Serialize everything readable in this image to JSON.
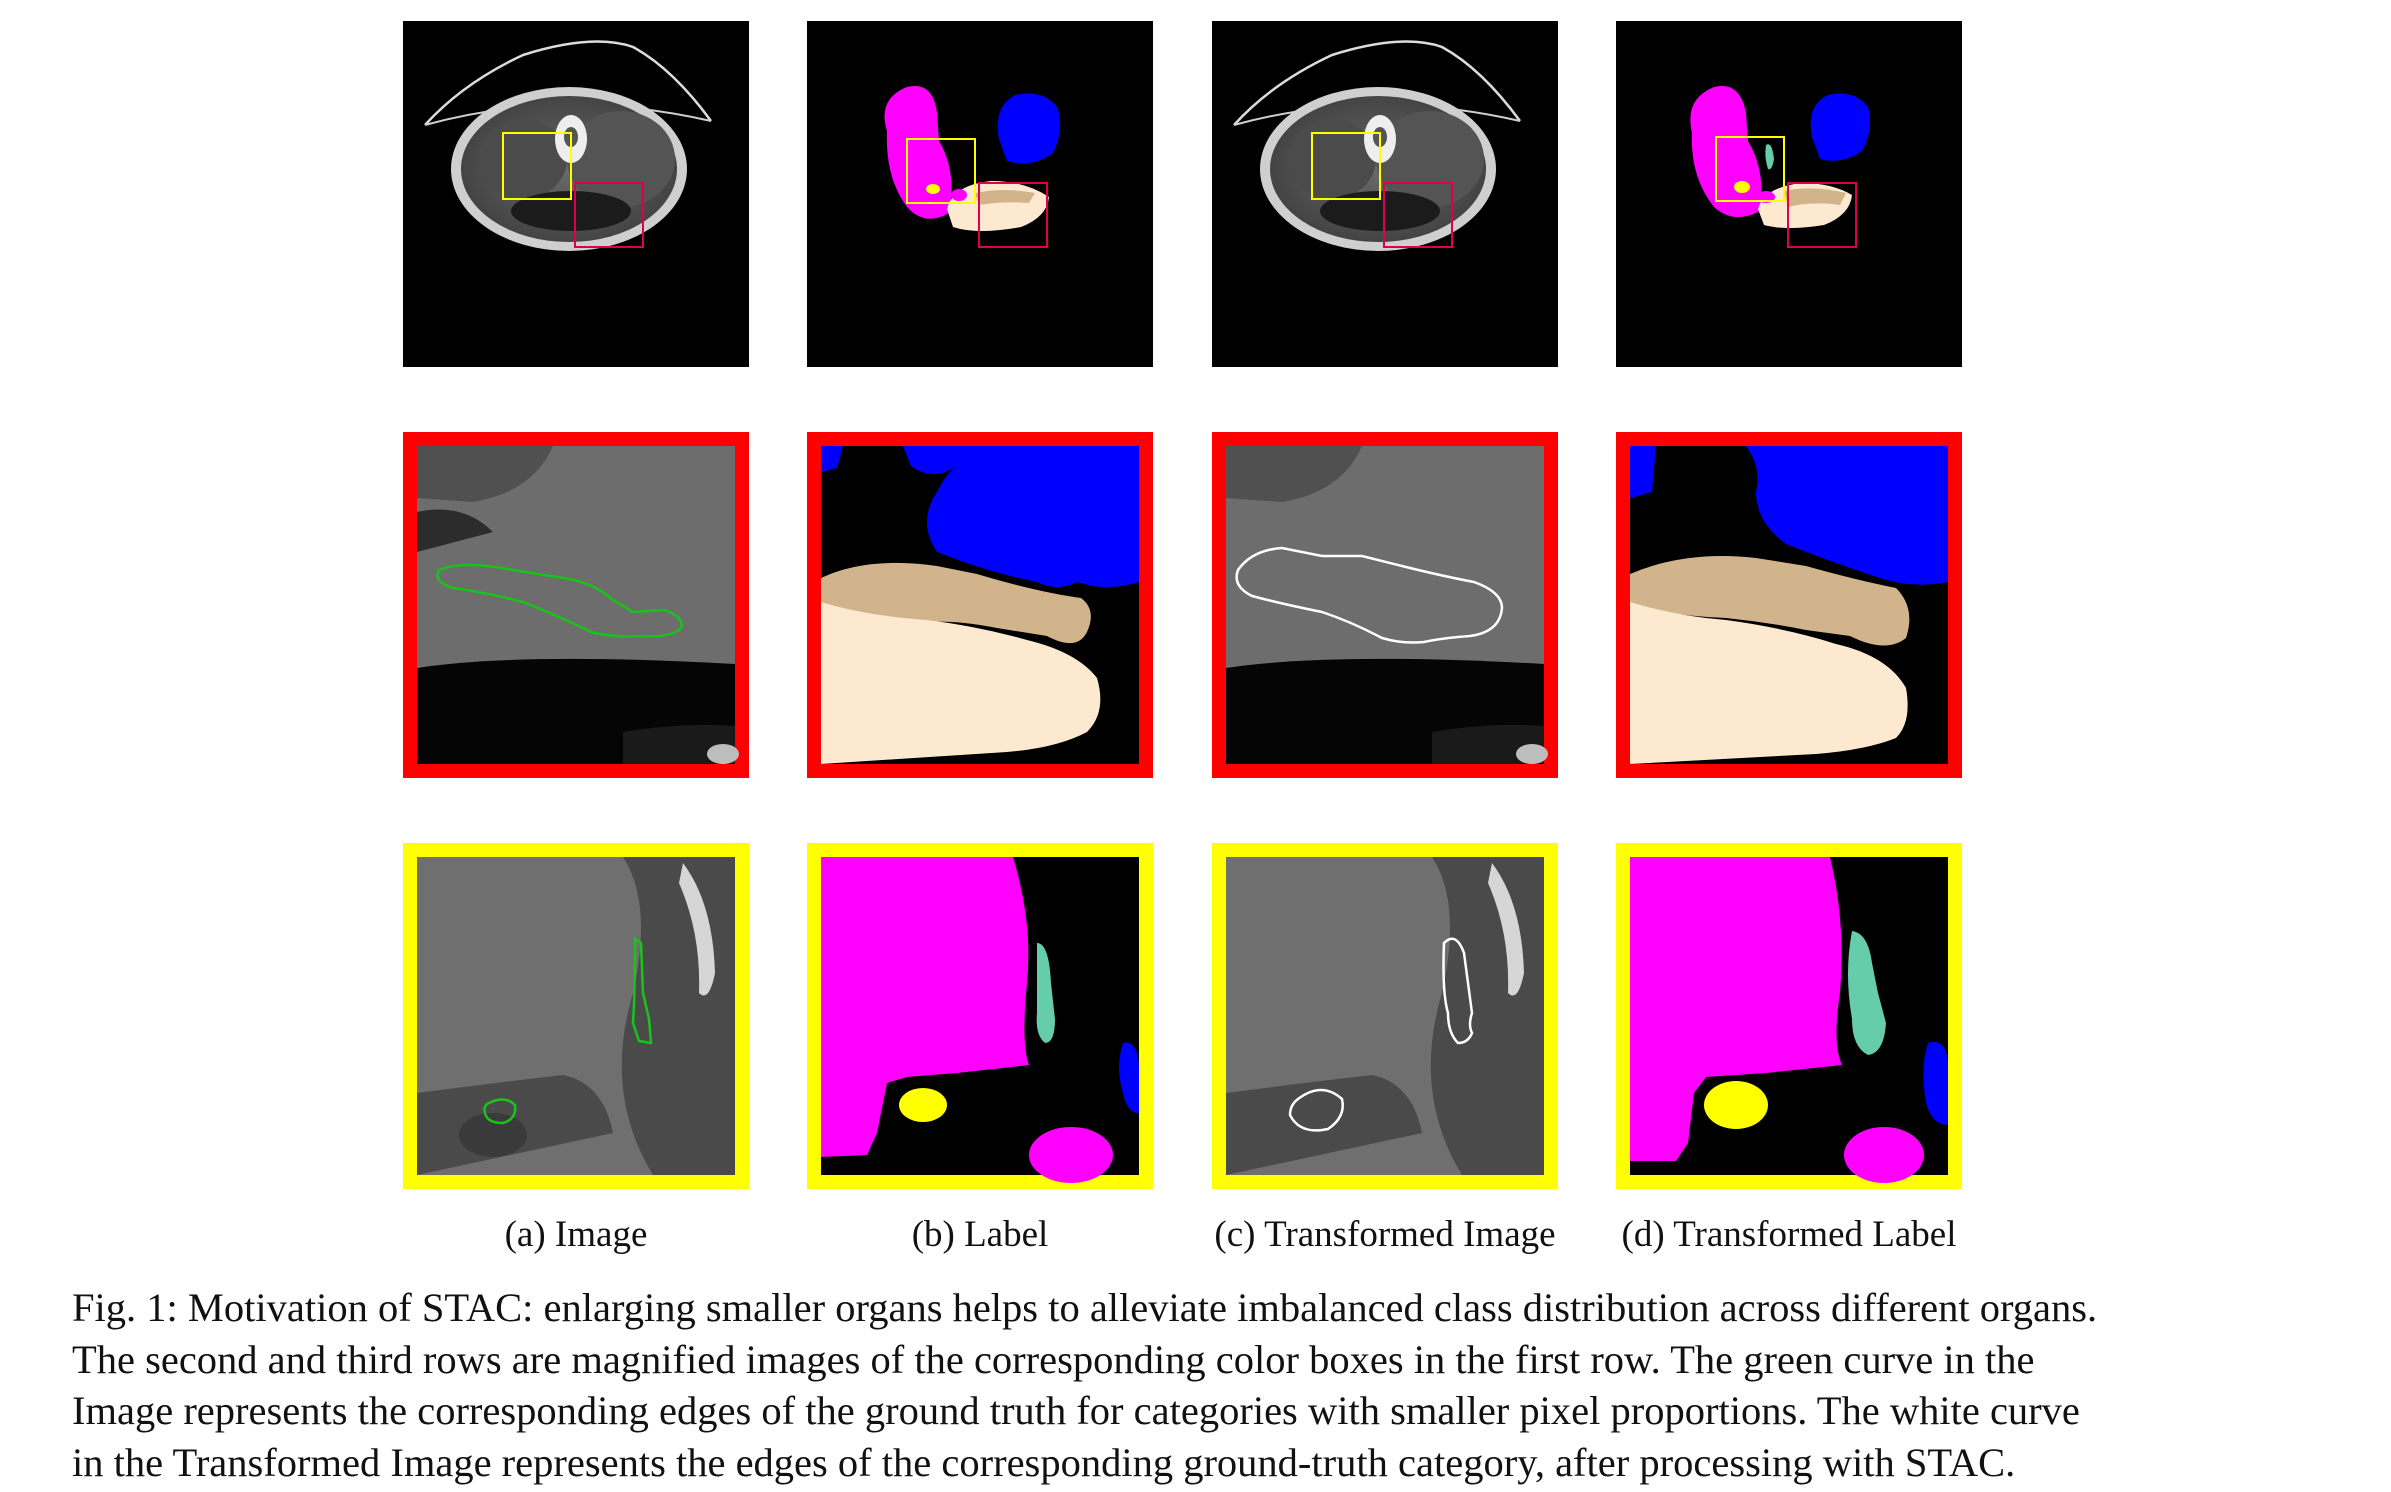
{
  "figure": {
    "columns": [
      {
        "key": "image",
        "label": "(a) Image"
      },
      {
        "key": "label",
        "label": "(b) Label"
      },
      {
        "key": "timage",
        "label": "(c) Transformed Image"
      },
      {
        "key": "tlabel",
        "label": "(d) Transformed Label"
      }
    ],
    "rows": [
      "overview",
      "red-box-zoom",
      "yellow-box-zoom"
    ],
    "box_colors": {
      "red": "#ff0000",
      "yellow": "#ffff00"
    },
    "organ_colors": {
      "magenta": "#ff00ff",
      "blue": "#0000ff",
      "bisque": "#fde9d0",
      "tan": "#d2b48c",
      "aqua-green": "#66cdaa",
      "yellow": "#ffff00"
    },
    "edge_colors": {
      "green": "#18c418",
      "white": "#ffffff"
    }
  },
  "caption": {
    "line1": "Fig. 1: Motivation of STAC: enlarging smaller organs helps to alleviate imbalanced class distribution across different organs.",
    "line2": "The second and third rows are magnified images of the corresponding color boxes in the first row. The green curve in the",
    "line3": "Image represents the corresponding edges of the ground truth for categories with smaller pixel proportions. The white curve",
    "line4": "in the Transformed Image represents the edges of the corresponding ground-truth category, after processing with STAC."
  }
}
